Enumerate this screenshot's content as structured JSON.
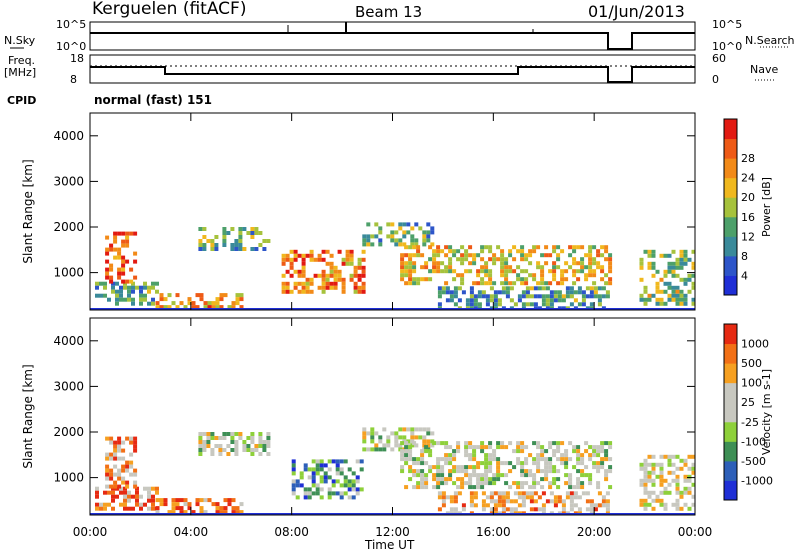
{
  "header": {
    "station": "Kerguelen (fitACF)",
    "beam": "Beam 13",
    "date": "01/Jun/2013"
  },
  "top_panels": {
    "nsky_label": "N.Sky",
    "nsearch_label": "N.Search",
    "nsky_ticks": [
      "10^5",
      "10^0"
    ],
    "nsearch_ticks": [
      "10^5",
      "10^0"
    ],
    "freq_label": "Freq.",
    "freq_unit": "[MHz]",
    "freq_ticks": [
      "18",
      "8"
    ],
    "nave_label": "Nave",
    "nave_ticks": [
      "60",
      "0"
    ],
    "cpid_label": "CPID",
    "cpid_value": "normal (fast) 151"
  },
  "chart_data": [
    {
      "type": "heatmap",
      "ylabel": "Slant Range [km]",
      "xlabel": "Time UT",
      "colorbar_label": "Power [dB]",
      "ylim": [
        180,
        4500
      ],
      "xlim": [
        0,
        24
      ],
      "y_ticks": [
        "1000",
        "2000",
        "3000",
        "4000"
      ],
      "x_ticks": [
        "00:00",
        "04:00",
        "08:00",
        "12:00",
        "16:00",
        "20:00",
        "00:00"
      ],
      "colorbar_ticks": [
        "4",
        "8",
        "12",
        "16",
        "20",
        "24",
        "28"
      ],
      "colorbar_colors": [
        "#1f2fd6",
        "#2d55c9",
        "#3a8a9a",
        "#4da06a",
        "#a6c23c",
        "#f0b81e",
        "#f28a18",
        "#ee5a16",
        "#e21a12"
      ],
      "regions": [
        {
          "t0": 0.2,
          "t1": 2.6,
          "r0": 300,
          "r1": 800,
          "level": 0.35
        },
        {
          "t0": 0.6,
          "t1": 1.8,
          "r0": 800,
          "r1": 1900,
          "level": 0.85
        },
        {
          "t0": 2.6,
          "t1": 6.0,
          "r0": 250,
          "r1": 550,
          "level": 0.7
        },
        {
          "t0": 4.3,
          "t1": 7.0,
          "r0": 1500,
          "r1": 2000,
          "level": 0.4
        },
        {
          "t0": 7.6,
          "t1": 10.8,
          "r0": 600,
          "r1": 1500,
          "level": 0.75
        },
        {
          "t0": 10.8,
          "t1": 13.5,
          "r0": 1600,
          "r1": 2100,
          "level": 0.4
        },
        {
          "t0": 12.3,
          "t1": 20.6,
          "r0": 800,
          "r1": 1600,
          "level": 0.6
        },
        {
          "t0": 13.8,
          "t1": 20.6,
          "r0": 250,
          "r1": 700,
          "level": 0.35
        },
        {
          "t0": 21.8,
          "t1": 24.0,
          "r0": 300,
          "r1": 1500,
          "level": 0.45
        }
      ]
    },
    {
      "type": "heatmap",
      "ylabel": "Slant Range [km]",
      "xlabel": "Time UT",
      "colorbar_label": "Velocity [m s-1]",
      "ylim": [
        180,
        4500
      ],
      "xlim": [
        0,
        24
      ],
      "y_ticks": [
        "1000",
        "2000",
        "3000",
        "4000"
      ],
      "x_ticks": [
        "00:00",
        "04:00",
        "08:00",
        "12:00",
        "16:00",
        "20:00",
        "00:00"
      ],
      "colorbar_ticks": [
        "1000",
        "500",
        "100",
        "25",
        "-25",
        "-100",
        "-500",
        "-1000"
      ],
      "colorbar_colors": [
        "#1f2fd6",
        "#2d5fb8",
        "#3e8f55",
        "#8ed03a",
        "#c8c8c0",
        "#c8c8c0",
        "#f6a021",
        "#f27016",
        "#e62a12"
      ],
      "regions": [
        {
          "t0": 0.2,
          "t1": 2.6,
          "r0": 300,
          "r1": 800,
          "level": 0.8
        },
        {
          "t0": 0.6,
          "t1": 1.8,
          "r0": 800,
          "r1": 1900,
          "level": 0.75
        },
        {
          "t0": 2.6,
          "t1": 6.0,
          "r0": 250,
          "r1": 550,
          "level": 0.85
        },
        {
          "t0": 4.3,
          "t1": 7.0,
          "r0": 1500,
          "r1": 2000,
          "level": 0.5
        },
        {
          "t0": 8.0,
          "t1": 10.8,
          "r0": 600,
          "r1": 1400,
          "level": 0.3
        },
        {
          "t0": 10.8,
          "t1": 13.5,
          "r0": 1600,
          "r1": 2100,
          "level": 0.5
        },
        {
          "t0": 12.3,
          "t1": 20.6,
          "r0": 800,
          "r1": 1800,
          "level": 0.5
        },
        {
          "t0": 13.8,
          "t1": 20.6,
          "r0": 250,
          "r1": 700,
          "level": 0.7
        },
        {
          "t0": 21.8,
          "t1": 24.0,
          "r0": 300,
          "r1": 1500,
          "level": 0.55
        }
      ]
    }
  ]
}
